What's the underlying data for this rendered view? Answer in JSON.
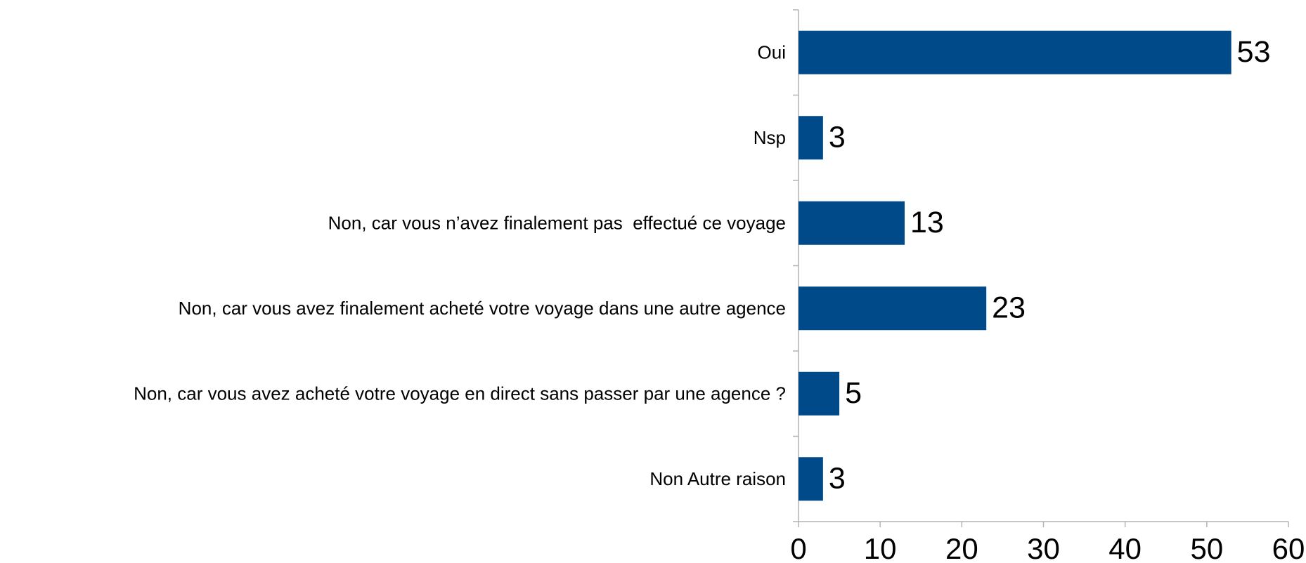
{
  "chart_data": {
    "type": "hbar",
    "categories": [
      "Oui",
      "Nsp",
      "Non, car vous n’avez finalement pas  effectué ce voyage",
      "Non, car vous avez finalement acheté votre voyage dans une autre agence",
      "Non, car vous avez acheté votre voyage en direct sans passer par une agence ?",
      "Non Autre raison"
    ],
    "values": [
      53,
      3,
      13,
      23,
      5,
      3
    ],
    "color": "#004a8a",
    "xlim": [
      0,
      60
    ],
    "xticks": [
      0,
      10,
      20,
      30,
      40,
      50,
      60
    ],
    "grid": false
  }
}
